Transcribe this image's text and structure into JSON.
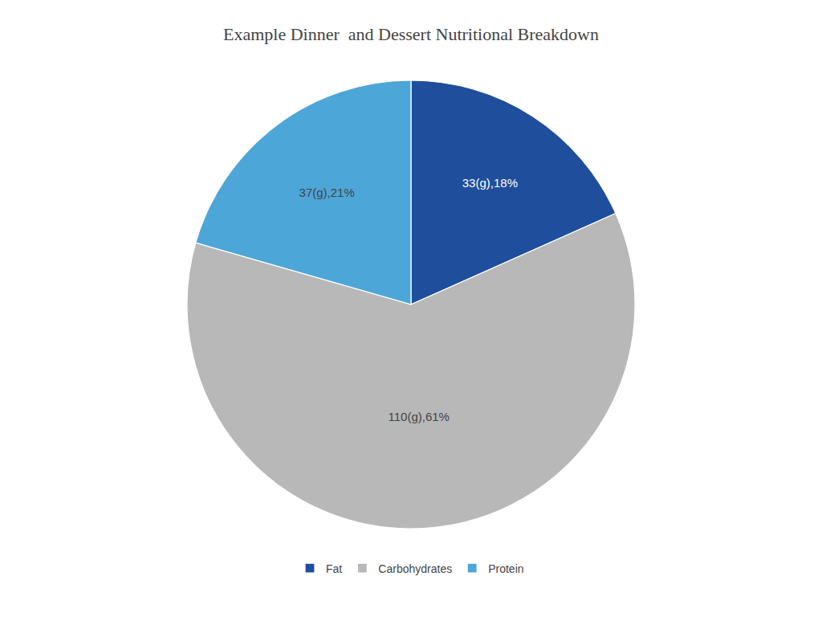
{
  "chart_data": {
    "type": "pie",
    "title": "Example Dinner  and Dessert Nutritional Breakdown",
    "categories": [
      "Fat",
      "Carbohydrates",
      "Protein"
    ],
    "values": [
      33,
      110,
      37
    ],
    "value_labels": [
      "33(g),18%",
      "110(g),61%",
      "37(g),21%"
    ],
    "colors": [
      "#1f4e9c",
      "#b8b8b8",
      "#4da6d8"
    ],
    "data_labels": true,
    "legend": "bottom"
  }
}
